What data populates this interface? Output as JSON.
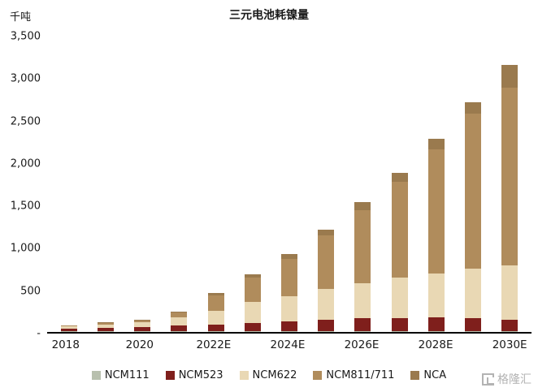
{
  "title": "三元电池耗镍量",
  "unit_label": "千吨",
  "watermark": "格隆汇",
  "chart_data": {
    "type": "bar",
    "stacked": true,
    "title": "三元电池耗镍量",
    "ylabel": "千吨",
    "ylim": [
      0,
      3500
    ],
    "y_ticks": [
      "3,500",
      "3,000",
      "2,500",
      "2,000",
      "1,500",
      "1,000",
      "500",
      "-"
    ],
    "grid": false,
    "legend_position": "bottom",
    "categories": [
      "2018",
      "2019",
      "2020",
      "2021",
      "2022E",
      "2023E",
      "2024E",
      "2025E",
      "2026E",
      "2027E",
      "2028E",
      "2029E",
      "2030E"
    ],
    "x_tick_labels_shown": [
      "2018",
      "2020",
      "2022E",
      "2024E",
      "2026E",
      "2028E",
      "2030E"
    ],
    "series": [
      {
        "name": "NCM111",
        "color": "#b8c0ae",
        "values": [
          8,
          8,
          6,
          6,
          6,
          6,
          6,
          6,
          6,
          6,
          6,
          6,
          6
        ]
      },
      {
        "name": "NCM523",
        "color": "#7f1f1c",
        "values": [
          30,
          45,
          55,
          75,
          80,
          100,
          120,
          140,
          155,
          160,
          165,
          160,
          140
        ]
      },
      {
        "name": "NCM622",
        "color": "#e9d8b4",
        "values": [
          25,
          35,
          50,
          90,
          160,
          250,
          300,
          360,
          420,
          480,
          520,
          580,
          640
        ]
      },
      {
        "name": "NCM811/711",
        "color": "#b08c5c",
        "values": [
          12,
          18,
          25,
          60,
          190,
          290,
          440,
          640,
          860,
          1130,
          1470,
          1840,
          2110
        ]
      },
      {
        "name": "NCA",
        "color": "#9a7a4e",
        "values": [
          5,
          9,
          9,
          14,
          30,
          40,
          55,
          65,
          95,
          105,
          125,
          135,
          265
        ]
      }
    ]
  }
}
